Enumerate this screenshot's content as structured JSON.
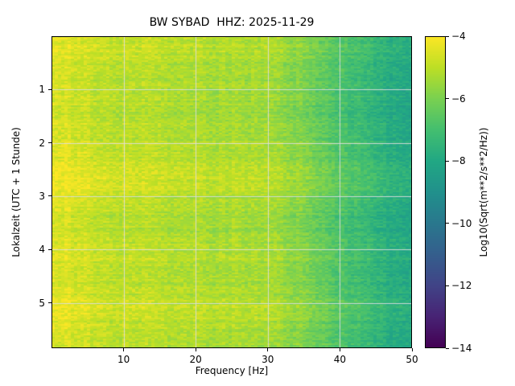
{
  "chart_data": {
    "type": "heatmap",
    "title": "BW SYBAD  HHZ: 2025-11-29",
    "xlabel": "Frequency [Hz]",
    "ylabel": "Lokalzeit (UTC + 1 Stunde)",
    "x_range": [
      0,
      50
    ],
    "y_range": [
      0,
      5.85
    ],
    "x_ticks": [
      10,
      20,
      30,
      40,
      50
    ],
    "y_ticks": [
      1,
      2,
      3,
      4,
      5
    ],
    "value_range": [
      -14,
      -4
    ],
    "colormap": "viridis",
    "grid": true,
    "colorbar": {
      "label": "Log10(Sqrt(m**2/s**2/Hz))",
      "ticks": [
        -4,
        -6,
        -8,
        -10,
        -12,
        -14
      ]
    },
    "x_centers": [
      1.25,
      3.75,
      6.25,
      8.75,
      11.25,
      13.75,
      16.25,
      18.75,
      21.25,
      23.75,
      26.25,
      28.75,
      31.25,
      33.75,
      36.25,
      38.75,
      41.25,
      43.75,
      46.25,
      48.75
    ],
    "y_centers": [
      0.24,
      0.73,
      1.22,
      1.71,
      2.19,
      2.68,
      3.17,
      3.66,
      4.14,
      4.63,
      5.12,
      5.61
    ],
    "values": [
      [
        -4.4,
        -4.5,
        -4.8,
        -4.8,
        -4.9,
        -4.9,
        -5.0,
        -5.0,
        -5.1,
        -5.1,
        -5.2,
        -5.2,
        -5.3,
        -5.6,
        -6.0,
        -6.4,
        -6.8,
        -7.1,
        -7.5,
        -7.9
      ],
      [
        -4.6,
        -4.7,
        -5.0,
        -5.0,
        -5.1,
        -5.1,
        -5.2,
        -5.2,
        -5.3,
        -5.3,
        -5.4,
        -5.4,
        -5.5,
        -5.8,
        -6.2,
        -6.6,
        -7.0,
        -7.3,
        -7.7,
        -8.1
      ],
      [
        -4.7,
        -4.8,
        -5.1,
        -5.1,
        -5.2,
        -5.2,
        -5.3,
        -5.3,
        -5.4,
        -5.4,
        -5.5,
        -5.5,
        -5.6,
        -5.9,
        -6.3,
        -6.7,
        -7.1,
        -7.4,
        -7.8,
        -8.2
      ],
      [
        -4.6,
        -4.7,
        -5.0,
        -5.0,
        -5.1,
        -5.1,
        -5.2,
        -5.2,
        -5.3,
        -5.3,
        -5.4,
        -5.4,
        -5.5,
        -5.8,
        -6.2,
        -6.6,
        -7.0,
        -7.3,
        -7.7,
        -8.1
      ],
      [
        -4.5,
        -4.6,
        -4.9,
        -4.9,
        -5.0,
        -5.0,
        -5.1,
        -5.1,
        -5.2,
        -5.2,
        -5.3,
        -5.3,
        -5.4,
        -5.7,
        -6.1,
        -6.5,
        -6.9,
        -7.2,
        -7.6,
        -8.0
      ],
      [
        -4.2,
        -4.3,
        -4.6,
        -4.6,
        -4.7,
        -4.7,
        -4.8,
        -4.8,
        -4.9,
        -4.9,
        -5.0,
        -5.0,
        -5.1,
        -5.4,
        -5.8,
        -6.2,
        -6.6,
        -6.9,
        -7.3,
        -7.7
      ],
      [
        -4.6,
        -4.7,
        -5.0,
        -5.0,
        -5.1,
        -5.1,
        -5.2,
        -5.2,
        -5.3,
        -5.3,
        -5.4,
        -5.4,
        -5.5,
        -5.8,
        -6.2,
        -6.6,
        -7.0,
        -7.3,
        -7.7,
        -8.1
      ],
      [
        -4.7,
        -4.8,
        -5.1,
        -5.1,
        -5.2,
        -5.2,
        -5.3,
        -5.3,
        -5.4,
        -5.4,
        -5.5,
        -5.5,
        -5.6,
        -5.9,
        -6.3,
        -6.7,
        -7.1,
        -7.4,
        -7.8,
        -8.2
      ],
      [
        -4.4,
        -4.5,
        -4.8,
        -4.8,
        -4.9,
        -4.9,
        -5.0,
        -5.0,
        -5.1,
        -5.1,
        -5.2,
        -5.2,
        -5.3,
        -5.6,
        -6.0,
        -6.4,
        -6.8,
        -7.1,
        -7.5,
        -7.9
      ],
      [
        -4.6,
        -4.7,
        -5.0,
        -5.0,
        -5.1,
        -5.1,
        -5.2,
        -5.2,
        -5.3,
        -5.3,
        -5.4,
        -5.4,
        -5.5,
        -5.8,
        -6.2,
        -6.6,
        -7.0,
        -7.3,
        -7.7,
        -8.1
      ],
      [
        -4.3,
        -4.4,
        -4.7,
        -4.7,
        -4.8,
        -4.8,
        -4.9,
        -4.9,
        -5.0,
        -5.0,
        -5.1,
        -5.1,
        -5.2,
        -5.5,
        -5.9,
        -6.3,
        -6.7,
        -7.0,
        -7.4,
        -7.8
      ],
      [
        -4.6,
        -4.7,
        -5.0,
        -5.0,
        -5.1,
        -5.1,
        -5.2,
        -5.2,
        -5.3,
        -5.3,
        -5.4,
        -5.4,
        -5.5,
        -5.8,
        -6.2,
        -6.6,
        -7.0,
        -7.3,
        -7.7,
        -8.1
      ]
    ],
    "grid_color": "#d8d8d8"
  }
}
